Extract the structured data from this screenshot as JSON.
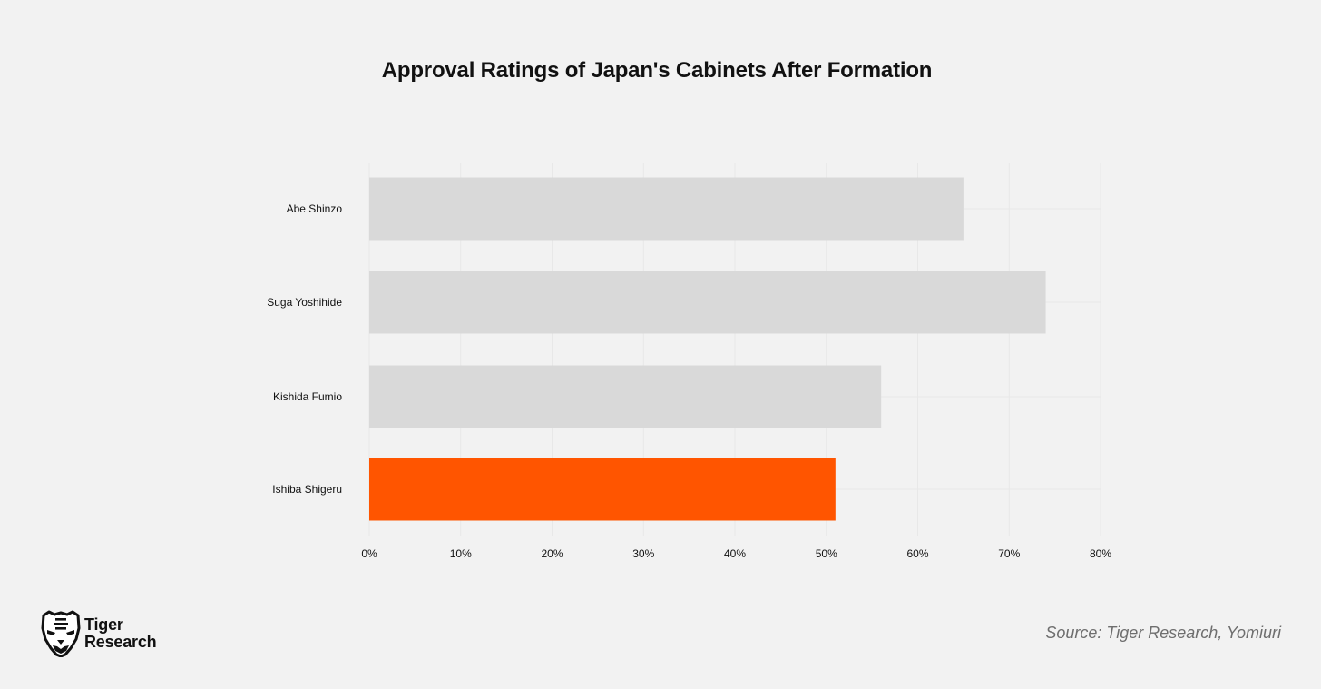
{
  "chart_data": {
    "type": "bar",
    "orientation": "horizontal",
    "title": "Approval Ratings of Japan's Cabinets After Formation",
    "xlabel": "",
    "ylabel": "",
    "categories": [
      "Abe Shinzo",
      "Suga Yoshihide",
      "Kishida Fumio",
      "Ishiba Shigeru"
    ],
    "values": [
      65,
      74,
      56,
      51
    ],
    "xlim": [
      0,
      80
    ],
    "xticks": [
      0,
      10,
      20,
      30,
      40,
      50,
      60,
      70,
      80
    ],
    "xtick_labels": [
      "0%",
      "10%",
      "20%",
      "30%",
      "40%",
      "50%",
      "60%",
      "70%",
      "80%"
    ],
    "bar_colors": [
      "#d9d9d9",
      "#d9d9d9",
      "#d9d9d9",
      "#ff5500"
    ],
    "highlight": "Ishiba Shigeru",
    "grid": true,
    "legend": "none"
  },
  "brand": {
    "name_line1": "Tiger",
    "name_line2": "Research",
    "logo_icon": "tiger-face-icon"
  },
  "source": "Source: Tiger Research, Yomiuri",
  "colors": {
    "background": "#f2f2f2",
    "bar_default": "#d9d9d9",
    "bar_highlight": "#ff5500",
    "grid": "#e8e8e8",
    "source_text": "#6e6e6e"
  }
}
